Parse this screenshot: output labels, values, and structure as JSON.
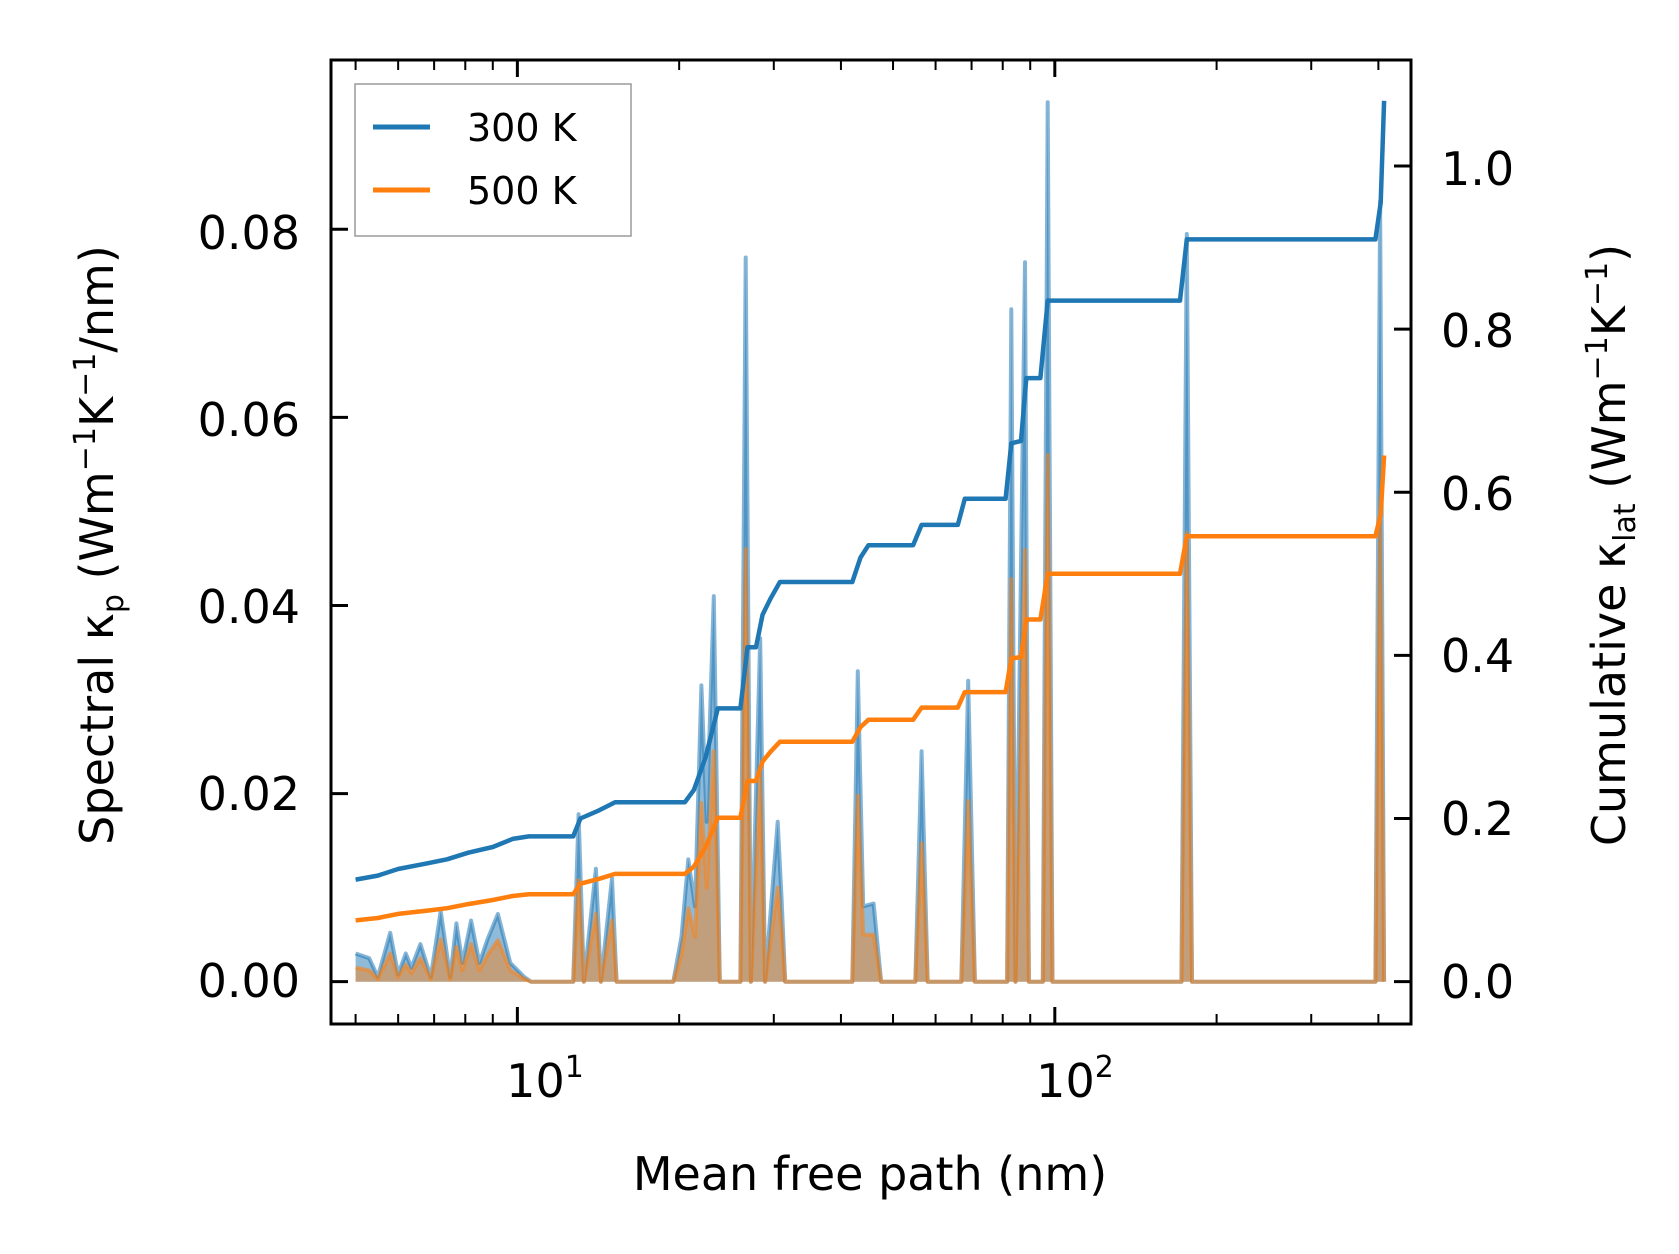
{
  "chart_data": {
    "type": "line",
    "dual_axis": true,
    "xscale": "log",
    "xlabel": "Mean free path (nm)",
    "xlim": [
      4.5,
      460
    ],
    "xticks": [
      {
        "value": 10,
        "base": "10",
        "exp": "1"
      },
      {
        "value": 100,
        "base": "10",
        "exp": "2"
      }
    ],
    "ylabel_left": {
      "pre": "Spectral κ",
      "sub": "p",
      "units": " (Wm",
      "sup1": "−1",
      "k": "K",
      "sup2": "−1",
      "tail": "/nm)"
    },
    "ylim_left": [
      -0.0045,
      0.098
    ],
    "yticks_left": [
      0.0,
      0.02,
      0.04,
      0.06,
      0.08
    ],
    "ytick_labels_left": [
      "0.00",
      "0.02",
      "0.04",
      "0.06",
      "0.08"
    ],
    "ylabel_right": {
      "pre": "Cumulative κ",
      "sub": "lat",
      "units": " (Wm",
      "sup1": "−1",
      "k": "K",
      "sup2": "−1",
      "tail": ")"
    },
    "ylim_right": [
      -0.052,
      1.13
    ],
    "yticks_right": [
      0.0,
      0.2,
      0.4,
      0.6,
      0.8,
      1.0
    ],
    "ytick_labels_right": [
      "0.0",
      "0.2",
      "0.4",
      "0.6",
      "0.8",
      "1.0"
    ],
    "legend": {
      "position": "top-left"
    },
    "series": [
      {
        "name": "300 K",
        "color": "#1f77b4",
        "spectral": [
          [
            5.0,
            0.003
          ],
          [
            5.3,
            0.0025
          ],
          [
            5.5,
            0.0005
          ],
          [
            5.8,
            0.0052
          ],
          [
            6.0,
            0.0008
          ],
          [
            6.2,
            0.003
          ],
          [
            6.35,
            0.0015
          ],
          [
            6.6,
            0.004
          ],
          [
            6.9,
            0.0005
          ],
          [
            7.2,
            0.0075
          ],
          [
            7.5,
            0.0005
          ],
          [
            7.7,
            0.0062
          ],
          [
            7.9,
            0.002
          ],
          [
            8.2,
            0.0065
          ],
          [
            8.5,
            0.002
          ],
          [
            8.8,
            0.0045
          ],
          [
            9.2,
            0.0072
          ],
          [
            9.7,
            0.002
          ],
          [
            10.3,
            0.0005
          ],
          [
            10.6,
            0.0
          ],
          [
            12.7,
            0.0
          ],
          [
            13.0,
            0.0178
          ],
          [
            13.3,
            0.0
          ],
          [
            14.0,
            0.012
          ],
          [
            14.3,
            0.0
          ],
          [
            15.0,
            0.011
          ],
          [
            15.3,
            0.0
          ],
          [
            19.5,
            0.0
          ],
          [
            20.2,
            0.0048
          ],
          [
            20.8,
            0.013
          ],
          [
            21.4,
            0.008
          ],
          [
            22.0,
            0.0315
          ],
          [
            22.5,
            0.017
          ],
          [
            23.2,
            0.041
          ],
          [
            23.8,
            0.0
          ],
          [
            26.0,
            0.0
          ],
          [
            26.6,
            0.077
          ],
          [
            27.2,
            0.0
          ],
          [
            28.3,
            0.0365
          ],
          [
            28.9,
            0.0
          ],
          [
            30.5,
            0.017
          ],
          [
            31.0,
            0.009
          ],
          [
            31.5,
            0.0
          ],
          [
            42.0,
            0.0
          ],
          [
            43.0,
            0.033
          ],
          [
            44.0,
            0.008
          ],
          [
            46.0,
            0.0083
          ],
          [
            47.5,
            0.0
          ],
          [
            55.0,
            0.0
          ],
          [
            56.5,
            0.0245
          ],
          [
            58.0,
            0.0
          ],
          [
            67.0,
            0.0
          ],
          [
            69.0,
            0.032
          ],
          [
            71.0,
            0.0
          ],
          [
            81.5,
            0.0
          ],
          [
            83.0,
            0.0715
          ],
          [
            84.5,
            0.0
          ],
          [
            88.0,
            0.0765
          ],
          [
            89.5,
            0.0
          ],
          [
            95.0,
            0.0
          ],
          [
            97.0,
            0.0935
          ],
          [
            99.0,
            0.0
          ],
          [
            172.0,
            0.0
          ],
          [
            176.0,
            0.0795
          ],
          [
            180.0,
            0.0
          ],
          [
            395.0,
            0.0
          ],
          [
            403.0,
            0.083
          ],
          [
            410.0,
            0.0
          ]
        ],
        "cumulative": [
          [
            5.0,
            0.125
          ],
          [
            5.5,
            0.13
          ],
          [
            6.0,
            0.138
          ],
          [
            6.8,
            0.145
          ],
          [
            7.4,
            0.15
          ],
          [
            8.1,
            0.158
          ],
          [
            9.0,
            0.165
          ],
          [
            9.8,
            0.175
          ],
          [
            10.5,
            0.178
          ],
          [
            12.7,
            0.178
          ],
          [
            13.1,
            0.2
          ],
          [
            14.2,
            0.21
          ],
          [
            15.2,
            0.22
          ],
          [
            20.5,
            0.22
          ],
          [
            21.3,
            0.235
          ],
          [
            22.4,
            0.275
          ],
          [
            23.6,
            0.335
          ],
          [
            26.0,
            0.335
          ],
          [
            26.8,
            0.41
          ],
          [
            27.8,
            0.41
          ],
          [
            28.6,
            0.45
          ],
          [
            29.6,
            0.47
          ],
          [
            30.8,
            0.49
          ],
          [
            42.0,
            0.49
          ],
          [
            43.5,
            0.52
          ],
          [
            45.0,
            0.535
          ],
          [
            54.5,
            0.535
          ],
          [
            56.5,
            0.56
          ],
          [
            66.0,
            0.56
          ],
          [
            68.0,
            0.592
          ],
          [
            81.0,
            0.592
          ],
          [
            83.0,
            0.66
          ],
          [
            86.5,
            0.663
          ],
          [
            88.5,
            0.74
          ],
          [
            94.0,
            0.74
          ],
          [
            97.0,
            0.835
          ],
          [
            171.0,
            0.835
          ],
          [
            176.0,
            0.91
          ],
          [
            395.0,
            0.91
          ],
          [
            404.0,
            0.955
          ],
          [
            410.0,
            1.08
          ]
        ]
      },
      {
        "name": "500 K",
        "color": "#ff7f0e",
        "spectral": [
          [
            5.0,
            0.0015
          ],
          [
            5.3,
            0.0012
          ],
          [
            5.5,
            0.0003
          ],
          [
            5.8,
            0.003
          ],
          [
            6.0,
            0.0005
          ],
          [
            6.2,
            0.0018
          ],
          [
            6.35,
            0.0009
          ],
          [
            6.6,
            0.0025
          ],
          [
            6.9,
            0.0003
          ],
          [
            7.2,
            0.0045
          ],
          [
            7.5,
            0.0003
          ],
          [
            7.7,
            0.0037
          ],
          [
            7.9,
            0.0012
          ],
          [
            8.2,
            0.004
          ],
          [
            8.5,
            0.0012
          ],
          [
            8.8,
            0.0028
          ],
          [
            9.2,
            0.0044
          ],
          [
            9.7,
            0.0012
          ],
          [
            10.3,
            0.0003
          ],
          [
            10.6,
            0.0
          ],
          [
            12.7,
            0.0
          ],
          [
            13.0,
            0.0108
          ],
          [
            13.3,
            0.0
          ],
          [
            14.0,
            0.0072
          ],
          [
            14.3,
            0.0
          ],
          [
            15.0,
            0.0065
          ],
          [
            15.3,
            0.0
          ],
          [
            19.5,
            0.0
          ],
          [
            20.2,
            0.0029
          ],
          [
            20.8,
            0.0078
          ],
          [
            21.4,
            0.0048
          ],
          [
            22.0,
            0.019
          ],
          [
            22.5,
            0.01
          ],
          [
            23.2,
            0.0245
          ],
          [
            23.8,
            0.0
          ],
          [
            26.0,
            0.0
          ],
          [
            26.6,
            0.046
          ],
          [
            27.2,
            0.0
          ],
          [
            28.3,
            0.022
          ],
          [
            28.9,
            0.0
          ],
          [
            30.5,
            0.01
          ],
          [
            31.0,
            0.0055
          ],
          [
            31.5,
            0.0
          ],
          [
            42.0,
            0.0
          ],
          [
            43.0,
            0.0198
          ],
          [
            44.0,
            0.005
          ],
          [
            46.0,
            0.005
          ],
          [
            47.5,
            0.0
          ],
          [
            55.0,
            0.0
          ],
          [
            56.5,
            0.0147
          ],
          [
            58.0,
            0.0
          ],
          [
            67.0,
            0.0
          ],
          [
            69.0,
            0.0192
          ],
          [
            71.0,
            0.0
          ],
          [
            81.5,
            0.0
          ],
          [
            83.0,
            0.0428
          ],
          [
            84.5,
            0.0
          ],
          [
            88.0,
            0.0459
          ],
          [
            89.5,
            0.0
          ],
          [
            95.0,
            0.0
          ],
          [
            97.0,
            0.056
          ],
          [
            99.0,
            0.0
          ],
          [
            172.0,
            0.0
          ],
          [
            176.0,
            0.0477
          ],
          [
            180.0,
            0.0
          ],
          [
            395.0,
            0.0
          ],
          [
            403.0,
            0.049
          ],
          [
            410.0,
            0.0
          ]
        ],
        "cumulative": [
          [
            5.0,
            0.075
          ],
          [
            5.5,
            0.078
          ],
          [
            6.0,
            0.083
          ],
          [
            6.8,
            0.087
          ],
          [
            7.4,
            0.09
          ],
          [
            8.1,
            0.095
          ],
          [
            9.0,
            0.1
          ],
          [
            9.8,
            0.105
          ],
          [
            10.5,
            0.107
          ],
          [
            12.7,
            0.107
          ],
          [
            13.1,
            0.12
          ],
          [
            14.2,
            0.126
          ],
          [
            15.2,
            0.132
          ],
          [
            20.5,
            0.132
          ],
          [
            21.3,
            0.141
          ],
          [
            22.4,
            0.165
          ],
          [
            23.6,
            0.201
          ],
          [
            26.0,
            0.201
          ],
          [
            26.8,
            0.246
          ],
          [
            27.8,
            0.246
          ],
          [
            28.6,
            0.27
          ],
          [
            29.6,
            0.282
          ],
          [
            30.8,
            0.294
          ],
          [
            42.0,
            0.294
          ],
          [
            43.5,
            0.312
          ],
          [
            45.0,
            0.321
          ],
          [
            54.5,
            0.321
          ],
          [
            56.5,
            0.336
          ],
          [
            66.0,
            0.336
          ],
          [
            68.0,
            0.355
          ],
          [
            81.0,
            0.355
          ],
          [
            83.0,
            0.396
          ],
          [
            86.5,
            0.398
          ],
          [
            88.5,
            0.444
          ],
          [
            94.0,
            0.444
          ],
          [
            97.0,
            0.5
          ],
          [
            171.0,
            0.5
          ],
          [
            176.0,
            0.546
          ],
          [
            395.0,
            0.546
          ],
          [
            404.0,
            0.573
          ],
          [
            410.0,
            0.645
          ]
        ]
      }
    ]
  }
}
